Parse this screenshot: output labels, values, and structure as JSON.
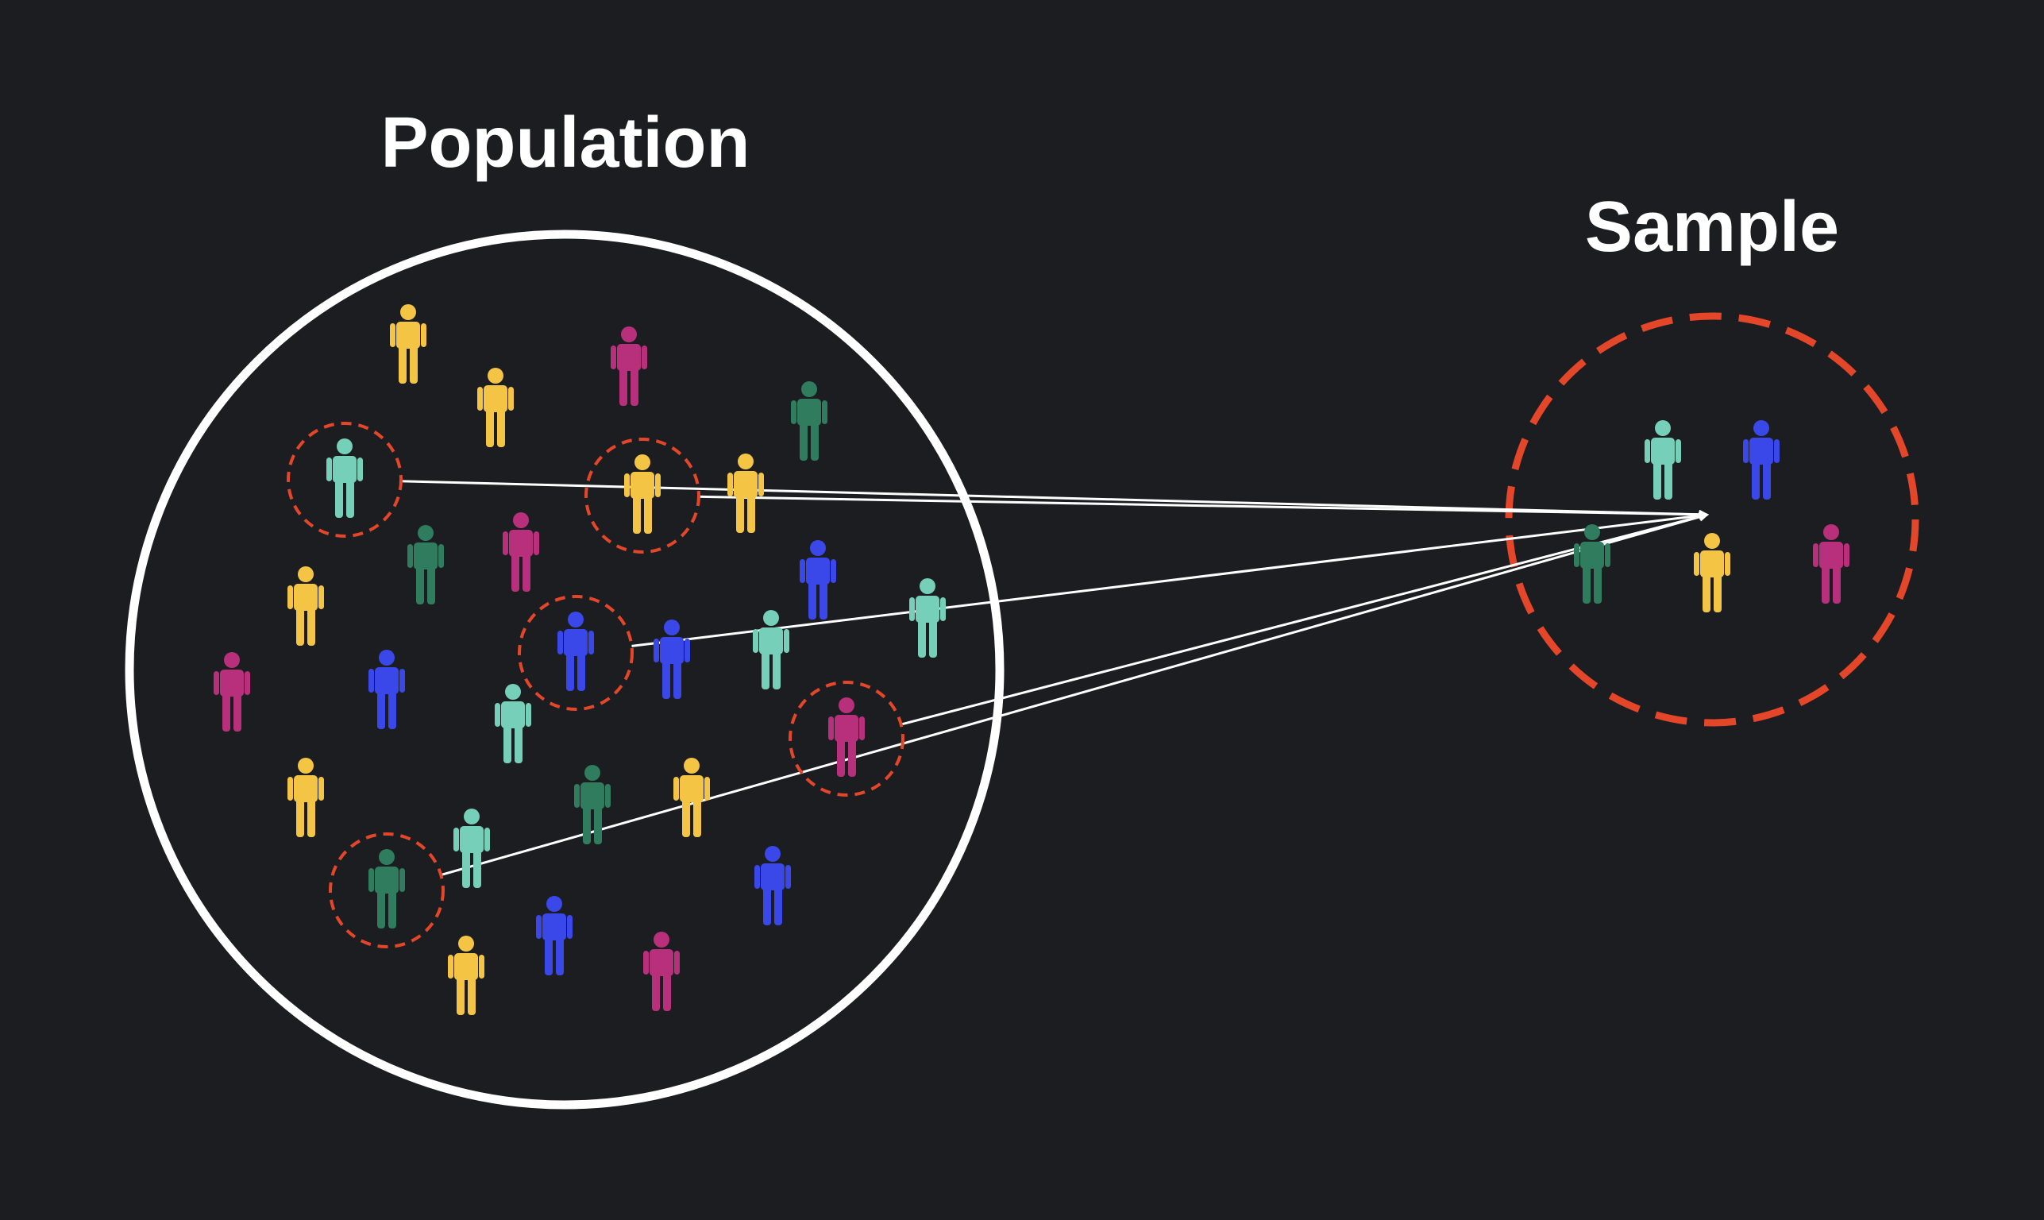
{
  "labels": {
    "population": "Population",
    "sample": "Sample"
  },
  "colors": {
    "background": "#1c1d20",
    "outline": "#ffffff",
    "highlight": "#e4462a",
    "yellow": "#f4c544",
    "magenta": "#b8307c",
    "teal_light": "#76cfb8",
    "teal_dark": "#2f7d5e",
    "blue": "#3a48ea"
  },
  "population": {
    "people": [
      {
        "color": "yellow",
        "selected": false
      },
      {
        "color": "magenta",
        "selected": false
      },
      {
        "color": "yellow",
        "selected": false
      },
      {
        "color": "teal_dark",
        "selected": false
      },
      {
        "color": "teal_light",
        "selected": true
      },
      {
        "color": "yellow",
        "selected": true
      },
      {
        "color": "yellow",
        "selected": false
      },
      {
        "color": "teal_dark",
        "selected": false
      },
      {
        "color": "magenta",
        "selected": false
      },
      {
        "color": "blue",
        "selected": false
      },
      {
        "color": "teal_light",
        "selected": false
      },
      {
        "color": "yellow",
        "selected": false
      },
      {
        "color": "blue",
        "selected": true
      },
      {
        "color": "blue",
        "selected": false
      },
      {
        "color": "teal_light",
        "selected": false
      },
      {
        "color": "magenta",
        "selected": false
      },
      {
        "color": "blue",
        "selected": false
      },
      {
        "color": "teal_light",
        "selected": false
      },
      {
        "color": "magenta",
        "selected": true
      },
      {
        "color": "yellow",
        "selected": false
      },
      {
        "color": "teal_dark",
        "selected": false
      },
      {
        "color": "yellow",
        "selected": false
      },
      {
        "color": "teal_light",
        "selected": false
      },
      {
        "color": "teal_dark",
        "selected": true
      },
      {
        "color": "blue",
        "selected": false
      },
      {
        "color": "blue",
        "selected": false
      },
      {
        "color": "yellow",
        "selected": false
      },
      {
        "color": "magenta",
        "selected": false
      }
    ]
  },
  "sample": {
    "people": [
      {
        "color": "teal_light"
      },
      {
        "color": "blue"
      },
      {
        "color": "teal_dark"
      },
      {
        "color": "yellow"
      },
      {
        "color": "magenta"
      }
    ]
  }
}
